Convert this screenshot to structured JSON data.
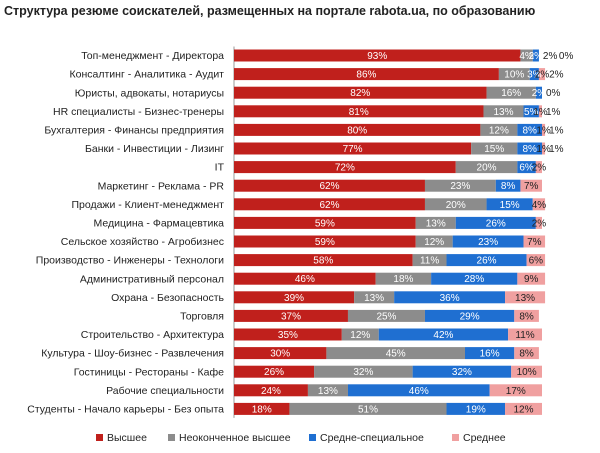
{
  "chart_data": {
    "type": "bar",
    "orientation": "horizontal",
    "stacked": "percent",
    "title": "Структура резюме соискателей, размещенных на портале rabota.ua, по образованию",
    "xlabel": "",
    "ylabel": "",
    "legend_position": "bottom",
    "grid": false,
    "categories": [
      "Топ-менеджмент - Директора",
      "Консалтинг - Аналитика - Аудит",
      "Юристы, адвокаты, нотариусы",
      "HR специалисты - Бизнес-тренеры",
      "Бухгалтерия - Финансы предприятия",
      "Банки - Инвестиции - Лизинг",
      "IT",
      "Маркетинг - Реклама - PR",
      "Продажи - Клиент-менеджмент",
      "Медицина - Фармацевтика",
      "Сельское хозяйство - Агробизнес",
      "Производство - Инженеры - Технологи",
      "Административный персонал",
      "Охрана - Безопасность",
      "Торговля",
      "Строительство - Архитектура",
      "Культура - Шоу-бизнес - Развлечения",
      "Гостиницы - Рестораны - Кафе",
      "Рабочие специальности",
      "Студенты - Начало карьеры - Без опыта"
    ],
    "series": [
      {
        "name": "Высшее",
        "color": "#c0201c",
        "values": [
          93,
          86,
          82,
          81,
          80,
          77,
          72,
          62,
          62,
          59,
          59,
          58,
          46,
          39,
          37,
          35,
          30,
          26,
          24,
          18
        ]
      },
      {
        "name": "Неоконченное высшее",
        "color": "#8c8c8c",
        "values": [
          4,
          10,
          16,
          13,
          12,
          15,
          20,
          23,
          20,
          13,
          12,
          11,
          18,
          13,
          25,
          12,
          45,
          32,
          13,
          51
        ]
      },
      {
        "name": "Средне-специальное",
        "color": "#1f6fd1",
        "values": [
          2,
          3,
          2,
          5,
          8,
          8,
          6,
          8,
          15,
          26,
          23,
          26,
          28,
          36,
          29,
          42,
          16,
          32,
          46,
          19
        ]
      },
      {
        "name": "Среднее",
        "color": "#f0a0a0",
        "values": [
          0,
          2,
          0,
          1,
          1,
          1,
          2,
          7,
          4,
          2,
          7,
          6,
          9,
          13,
          8,
          11,
          8,
          10,
          17,
          12
        ]
      }
    ],
    "label_colors": [
      "#ffffff",
      "#ffffff",
      "#ffffff",
      "#222222"
    ],
    "outside_labels": {
      "0": [
        "2%",
        "0%"
      ],
      "1": [
        "2%"
      ],
      "2": [
        "0%"
      ],
      "3": [
        "1%"
      ],
      "4": [
        "1%"
      ],
      "5": [
        "1%"
      ]
    },
    "xlim": [
      0,
      100
    ]
  }
}
